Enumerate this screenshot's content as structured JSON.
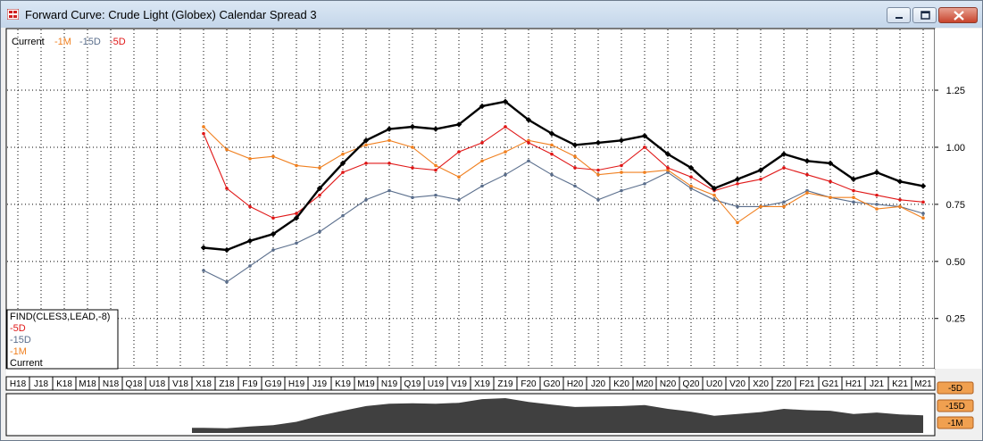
{
  "window": {
    "title": "Forward Curve: Crude Light (Globex) Calendar Spread 3"
  },
  "colors": {
    "current": "#000000",
    "minus_1m": "#f08020",
    "minus_15d": "#5a6e8c",
    "minus_5d": "#e01818",
    "mini_fill": "#404040",
    "badge": "#f0a050"
  },
  "top_legend": [
    "Current",
    "-1M",
    "-15D",
    "-5D"
  ],
  "lower_legend": {
    "header": "FIND(CLES3,LEAD,-8)",
    "items": [
      "-5D",
      "-15D",
      "-1M",
      "Current"
    ]
  },
  "badges": [
    "-5D",
    "-15D",
    "-1M"
  ],
  "chart_data": {
    "type": "line",
    "categories": [
      "H18",
      "J18",
      "K18",
      "M18",
      "N18",
      "Q18",
      "U18",
      "V18",
      "X18",
      "Z18",
      "F19",
      "G19",
      "H19",
      "J19",
      "K19",
      "M19",
      "N19",
      "Q19",
      "U19",
      "V19",
      "X19",
      "Z19",
      "F20",
      "G20",
      "H20",
      "J20",
      "K20",
      "M20",
      "N20",
      "Q20",
      "U20",
      "V20",
      "X20",
      "Z20",
      "F21",
      "G21",
      "H21",
      "J21",
      "K21",
      "M21"
    ],
    "y_ticks": [
      "0.25",
      "0.50",
      "0.75",
      "1.00",
      "1.25"
    ],
    "ylim": [
      0.03,
      1.52
    ],
    "grid": true,
    "legend_position": "top-left",
    "series": [
      {
        "name": "Current",
        "values": [
          null,
          null,
          null,
          null,
          null,
          null,
          null,
          null,
          0.56,
          0.55,
          0.59,
          0.62,
          0.69,
          0.82,
          0.93,
          1.03,
          1.08,
          1.09,
          1.08,
          1.1,
          1.18,
          1.2,
          1.12,
          1.06,
          1.01,
          1.02,
          1.03,
          1.05,
          0.97,
          0.91,
          0.82,
          0.86,
          0.9,
          0.97,
          0.94,
          0.93,
          0.86,
          0.89,
          0.85,
          0.83
        ]
      },
      {
        "name": "-1M",
        "values": [
          null,
          null,
          null,
          null,
          null,
          null,
          null,
          null,
          1.09,
          0.99,
          0.95,
          0.96,
          0.92,
          0.91,
          0.97,
          1.01,
          1.03,
          1.0,
          0.92,
          0.87,
          0.94,
          0.98,
          1.03,
          1.01,
          0.96,
          0.88,
          0.89,
          0.89,
          0.9,
          0.83,
          0.79,
          0.67,
          0.74,
          0.74,
          0.8,
          0.78,
          0.78,
          0.73,
          0.74,
          0.69
        ]
      },
      {
        "name": "-15D",
        "values": [
          null,
          null,
          null,
          null,
          null,
          null,
          null,
          null,
          0.46,
          0.41,
          0.48,
          0.55,
          0.58,
          0.63,
          0.7,
          0.77,
          0.81,
          0.78,
          0.79,
          0.77,
          0.83,
          0.88,
          0.94,
          0.88,
          0.83,
          0.77,
          0.81,
          0.84,
          0.89,
          0.82,
          0.77,
          0.74,
          0.74,
          0.76,
          0.81,
          0.78,
          0.76,
          0.75,
          0.74,
          0.71
        ]
      },
      {
        "name": "-5D",
        "values": [
          null,
          null,
          null,
          null,
          null,
          null,
          null,
          null,
          1.06,
          0.82,
          0.74,
          0.69,
          0.71,
          0.79,
          0.89,
          0.93,
          0.93,
          0.91,
          0.9,
          0.98,
          1.02,
          1.09,
          1.02,
          0.97,
          0.91,
          0.9,
          0.92,
          1.0,
          0.91,
          0.87,
          0.81,
          0.84,
          0.86,
          0.91,
          0.88,
          0.85,
          0.81,
          0.79,
          0.77,
          0.76
        ]
      }
    ]
  }
}
